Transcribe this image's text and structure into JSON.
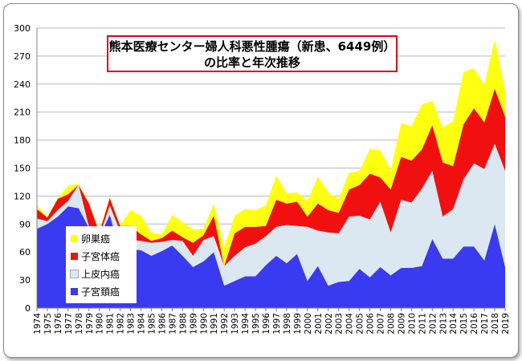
{
  "chart_data": {
    "type": "area",
    "stacked": true,
    "title_line1": "熊本医療センター婦人科悪性腫瘍（新患、6449例）",
    "title_line2": "の比率と年次推移",
    "ylim": [
      0,
      300
    ],
    "yticks": [
      0,
      30,
      60,
      90,
      120,
      150,
      180,
      210,
      240,
      270,
      300
    ],
    "grid": true,
    "legend_position": "left-inside",
    "x": [
      "1974",
      "1975",
      "1976",
      "1977",
      "1978",
      "1979",
      "1980",
      "1981",
      "1982",
      "1983",
      "1984",
      "1985",
      "1986",
      "1987",
      "1988",
      "1989",
      "1990",
      "1991",
      "1992",
      "1993",
      "1994",
      "1995",
      "1996",
      "1997",
      "1998",
      "1999",
      "2000",
      "2001",
      "2002",
      "2003",
      "2004",
      "2005",
      "2006",
      "2007",
      "2008",
      "2009",
      "2010",
      "2011",
      "2012",
      "2013",
      "2014",
      "2015",
      "2016",
      "2017",
      "2018",
      "2019"
    ],
    "series": [
      {
        "name": "子宮頚癌",
        "color": "#3a3af0",
        "values": [
          85,
          90,
          98,
          109,
          107,
          86,
          76,
          100,
          60,
          63,
          62,
          56,
          61,
          67,
          56,
          44,
          50,
          60,
          24,
          29,
          34,
          34,
          46,
          56,
          48,
          58,
          29,
          45,
          24,
          28,
          29,
          42,
          33,
          44,
          35,
          43,
          43,
          45,
          74,
          53,
          53,
          66,
          66,
          51,
          90,
          44
        ]
      },
      {
        "name": "上皮内癌",
        "color": "#dbe8f2",
        "values": [
          11,
          3,
          7,
          6,
          25,
          1,
          1,
          10,
          22,
          10,
          10,
          14,
          10,
          6,
          16,
          12,
          23,
          17,
          21,
          27,
          31,
          35,
          31,
          31,
          41,
          30,
          58,
          38,
          57,
          52,
          69,
          57,
          62,
          70,
          46,
          73,
          70,
          83,
          73,
          45,
          53,
          72,
          89,
          98,
          86,
          103
        ]
      },
      {
        "name": "子宮体癌",
        "color": "#f01010",
        "values": [
          10,
          4,
          12,
          7,
          0,
          25,
          4,
          8,
          6,
          15,
          7,
          2,
          4,
          10,
          4,
          14,
          5,
          22,
          0,
          24,
          22,
          18,
          11,
          29,
          23,
          26,
          11,
          29,
          24,
          22,
          29,
          33,
          49,
          26,
          46,
          46,
          45,
          42,
          49,
          58,
          46,
          59,
          59,
          50,
          59,
          58
        ]
      },
      {
        "name": "卵巣癌",
        "color": "#ffff10",
        "values": [
          4,
          1,
          1,
          9,
          1,
          1,
          2,
          1,
          1,
          17,
          20,
          9,
          4,
          17,
          16,
          14,
          7,
          13,
          20,
          19,
          19,
          18,
          22,
          26,
          11,
          10,
          17,
          29,
          19,
          15,
          18,
          15,
          27,
          29,
          21,
          36,
          37,
          48,
          26,
          38,
          48,
          56,
          43,
          40,
          53,
          28
        ]
      }
    ]
  }
}
